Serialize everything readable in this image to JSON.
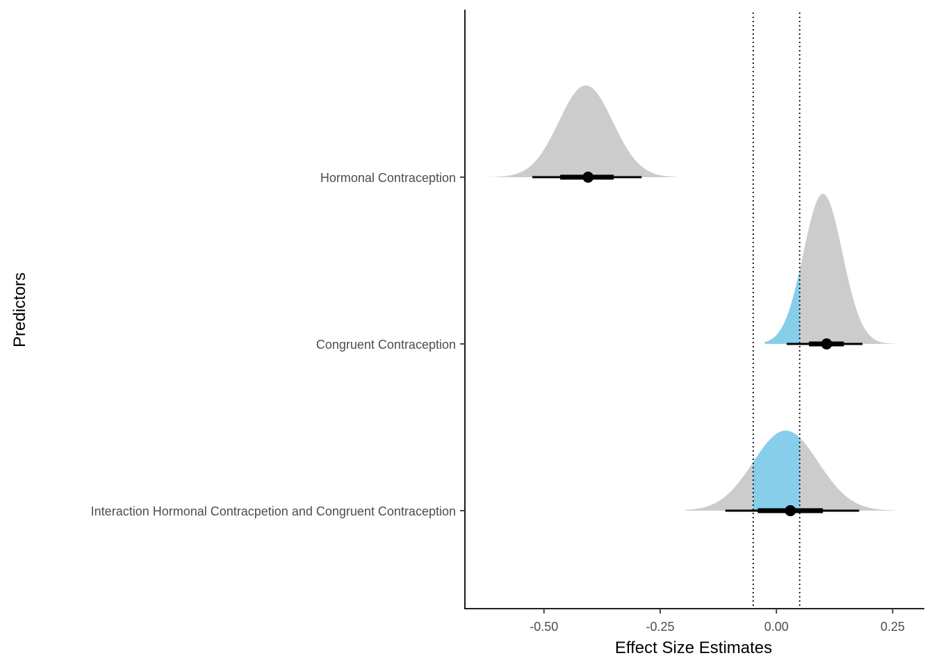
{
  "chart_data": {
    "type": "halfeye",
    "title": "",
    "xlabel": "Effect Size Estimates",
    "ylabel": "Predictors",
    "xlim": [
      -0.67,
      0.315
    ],
    "xticks": [
      -0.5,
      -0.25,
      0.0,
      0.25
    ],
    "xtick_labels": [
      "-0.50",
      "-0.25",
      "0.00",
      "0.25"
    ],
    "rope": [
      -0.05,
      0.05
    ],
    "grid": false,
    "colors": {
      "density": "#cccccc",
      "rope_fill": "#87ceeb",
      "interval": "#000000",
      "rope_line": "#000000"
    },
    "categories": [
      "Hormonal Contraception",
      "Congruent Contraception",
      "Interaction Hormonal Contracpetion and Congruent Contraception"
    ],
    "series": [
      {
        "category": "Hormonal Contraception",
        "point": -0.405,
        "interval_66": [
          -0.465,
          -0.35
        ],
        "interval_95": [
          -0.525,
          -0.29
        ],
        "range": [
          -0.62,
          -0.215
        ],
        "mode": -0.41,
        "sd": 0.058,
        "peak": 0.55
      },
      {
        "category": "Congruent Contraception",
        "point": 0.108,
        "interval_66": [
          0.07,
          0.145
        ],
        "interval_95": [
          0.022,
          0.185
        ],
        "range": [
          -0.025,
          0.26
        ],
        "mode": 0.1,
        "sd": 0.042,
        "peak": 0.9
      },
      {
        "category": "Interaction Hormonal Contracpetion and Congruent Contraception",
        "point": 0.03,
        "interval_66": [
          -0.04,
          0.1
        ],
        "interval_95": [
          -0.11,
          0.178
        ],
        "range": [
          -0.195,
          0.26
        ],
        "mode": 0.02,
        "sd": 0.07,
        "peak": 0.48
      }
    ]
  }
}
